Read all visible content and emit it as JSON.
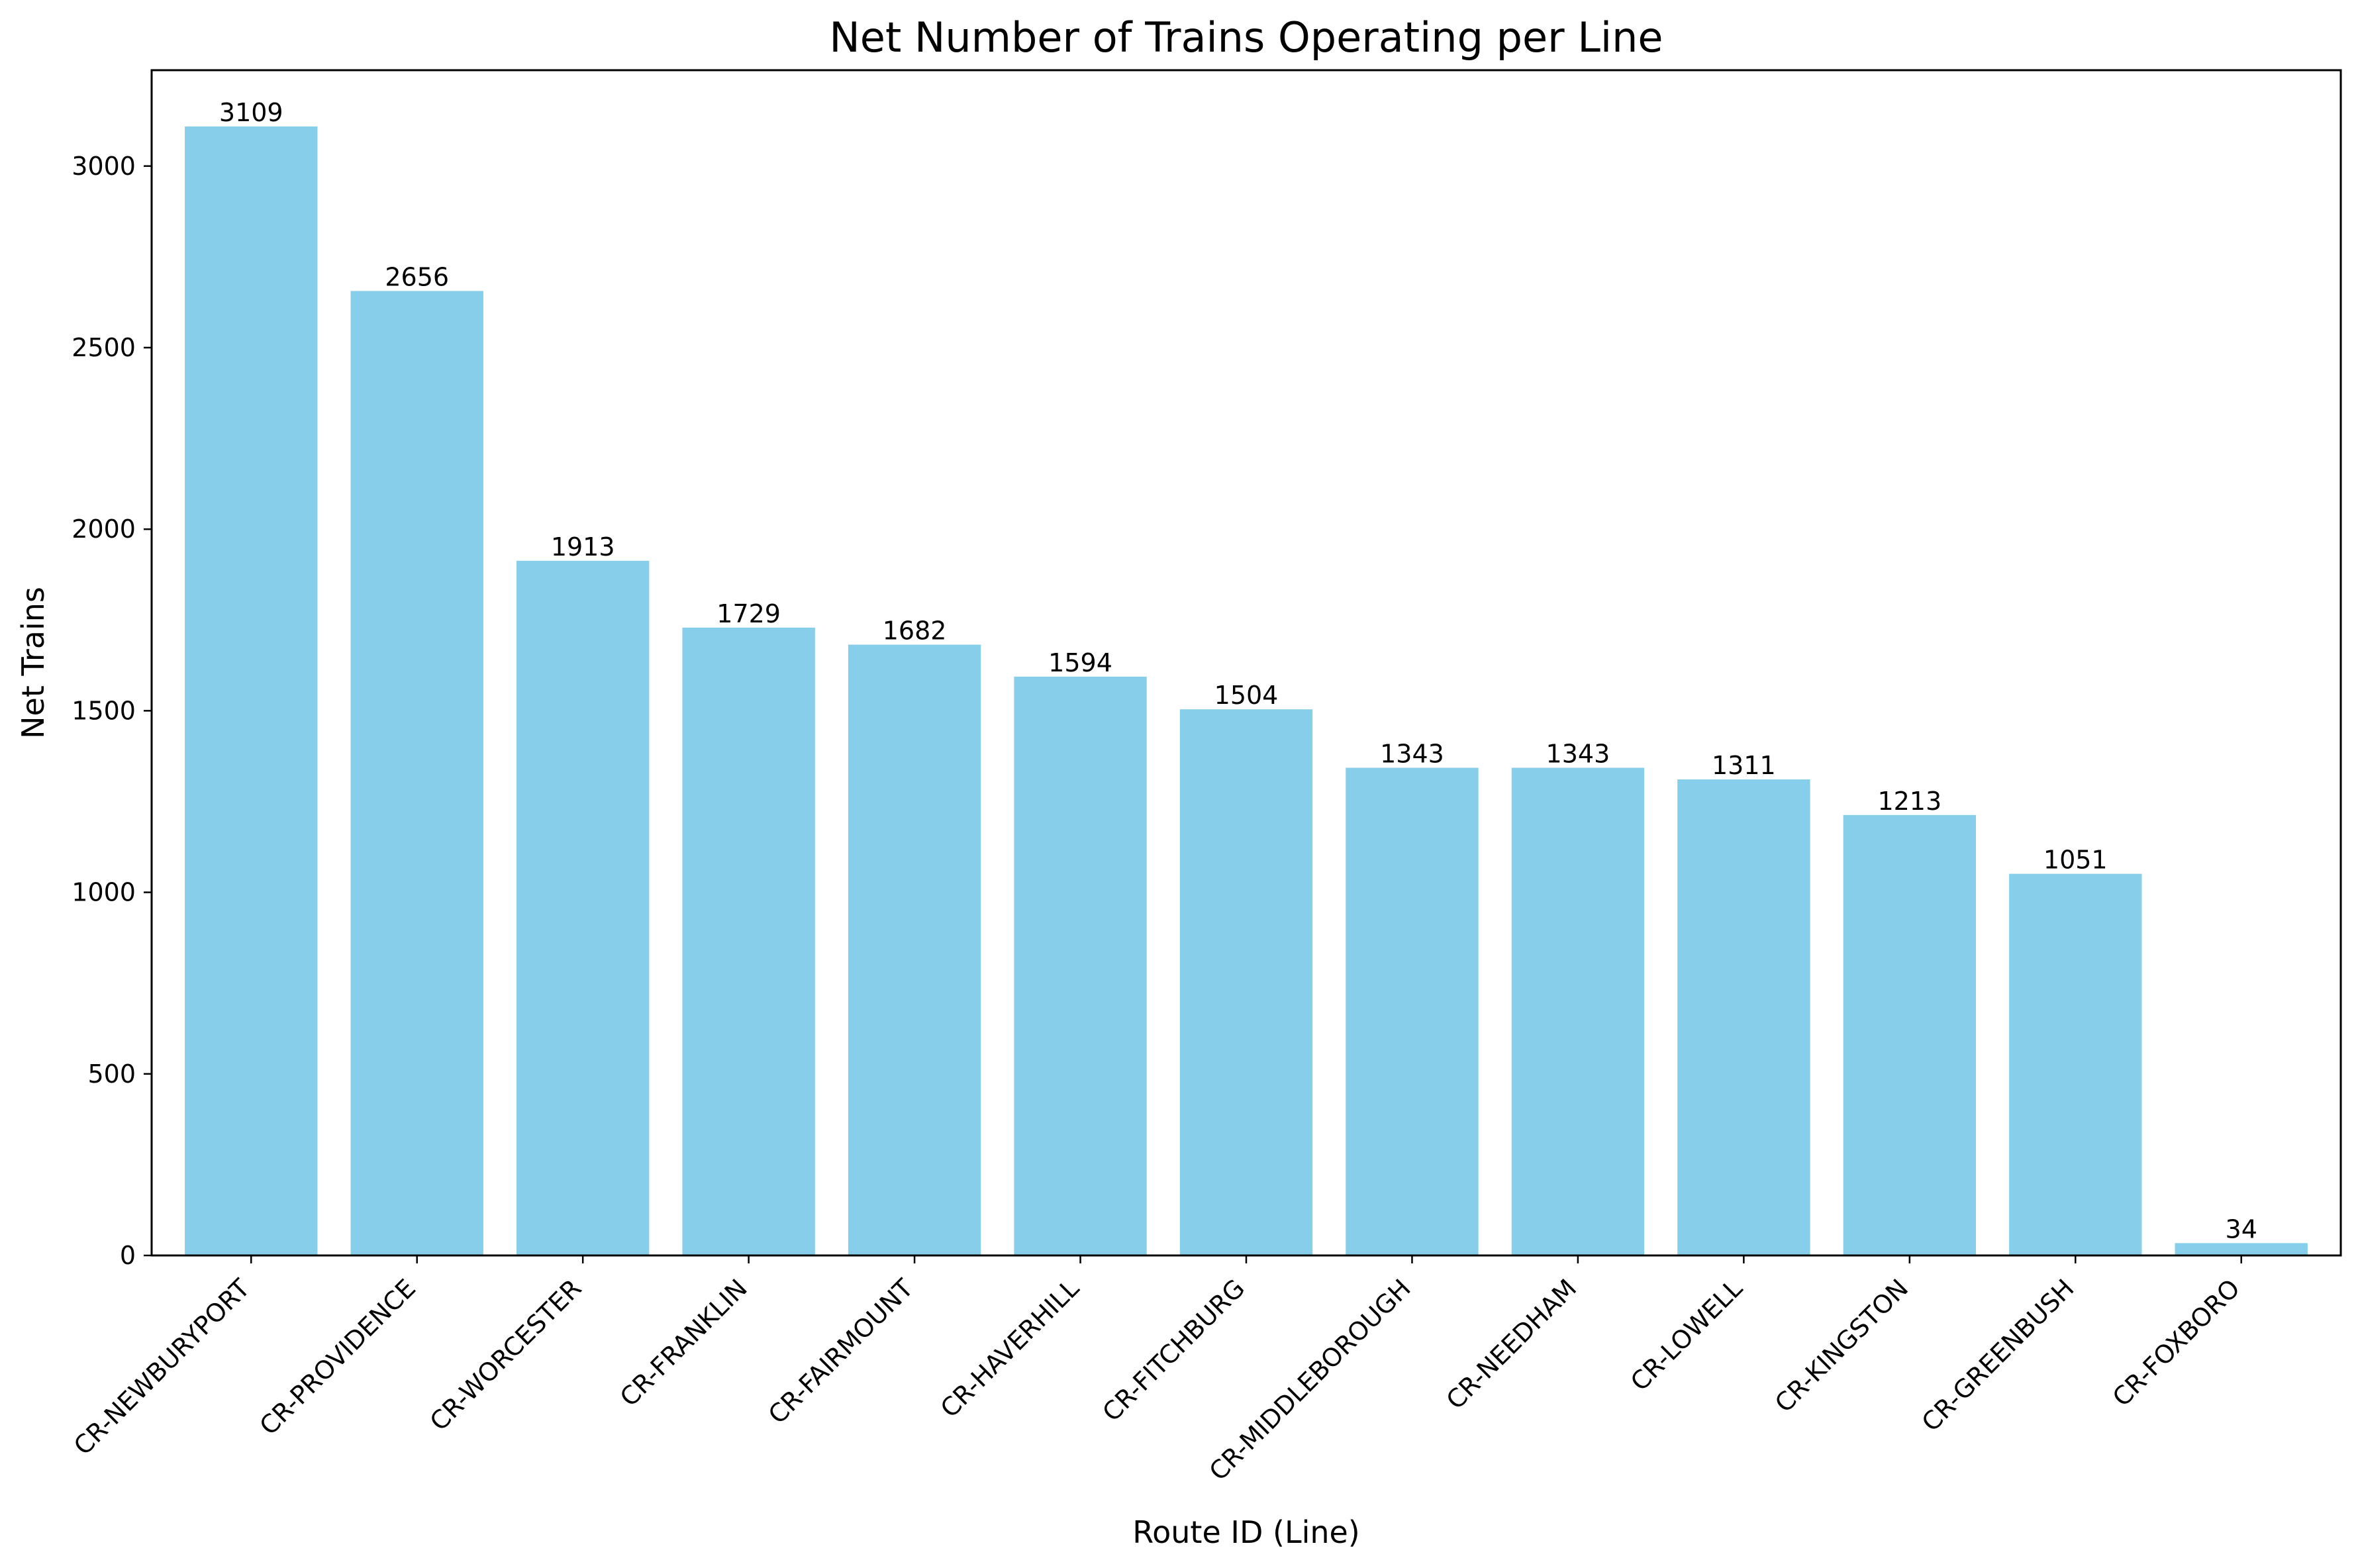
{
  "chart_data": {
    "type": "bar",
    "title": "Net Number of Trains Operating per Line",
    "xlabel": "Route ID (Line)",
    "ylabel": "Net Trains",
    "categories": [
      "CR-NEWBURYPORT",
      "CR-PROVIDENCE",
      "CR-WORCESTER",
      "CR-FRANKLIN",
      "CR-FAIRMOUNT",
      "CR-HAVERHILL",
      "CR-FITCHBURG",
      "CR-MIDDLEBOROUGH",
      "CR-NEEDHAM",
      "CR-LOWELL",
      "CR-KINGSTON",
      "CR-GREENBUSH",
      "CR-FOXBORO"
    ],
    "values": [
      3109,
      2656,
      1913,
      1729,
      1682,
      1594,
      1504,
      1343,
      1343,
      1311,
      1213,
      1051,
      34
    ],
    "ylim": [
      0,
      3264
    ],
    "yticks": [
      0,
      500,
      1000,
      1500,
      2000,
      2500,
      3000
    ],
    "bar_color": "#87CEEB",
    "grid": false,
    "legend": "none"
  }
}
